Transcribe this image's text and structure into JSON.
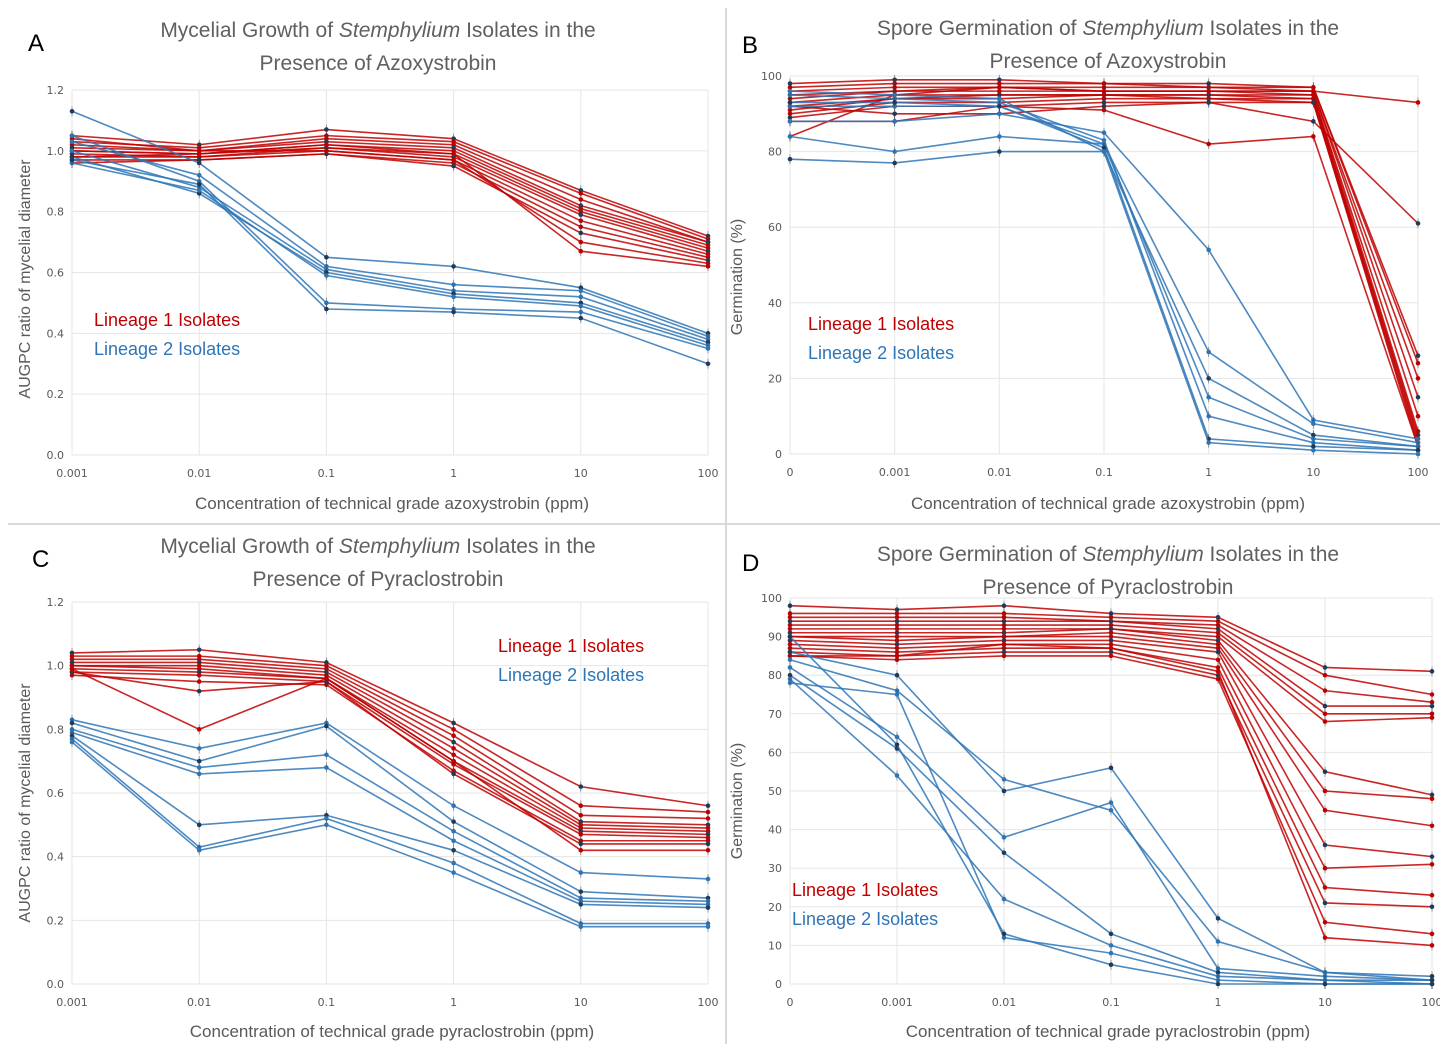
{
  "colors": {
    "lineage1": "#c00000",
    "lineage2": "#2e75b6",
    "mixed": "#1f3b5a",
    "grid": "#e6e6e6",
    "text": "#595959"
  },
  "panels": [
    {
      "letter": "A",
      "title_pre": "Mycelial Growth of ",
      "title_italic": "Stemphylium",
      "title_post": " Isolates in the",
      "title_line2": "Presence of Azoxystrobin",
      "xlabel": "Concentration of technical grade azoxystrobin (ppm)",
      "ylabel": "AUGPC ratio of mycelial diameter",
      "legend": [
        "Lineage 1 Isolates",
        "Lineage 2 Isolates"
      ]
    },
    {
      "letter": "B",
      "title_pre": "Spore Germination of ",
      "title_italic": "Stemphylium",
      "title_post": " Isolates in the",
      "title_line2": "Presence of Azoxystrobin",
      "xlabel": "Concentration of technical grade azoxystrobin (ppm)",
      "ylabel": "Germination (%)",
      "legend": [
        "Lineage 1 Isolates",
        "Lineage 2 Isolates"
      ]
    },
    {
      "letter": "C",
      "title_pre": "Mycelial Growth of ",
      "title_italic": "Stemphylium",
      "title_post": " Isolates in the",
      "title_line2": "Presence of Pyraclostrobin",
      "xlabel": "Concentration of technical grade pyraclostrobin (ppm)",
      "ylabel": "AUGPC ratio of mycelial diameter",
      "legend": [
        "Lineage 1 Isolates",
        "Lineage 2 Isolates"
      ]
    },
    {
      "letter": "D",
      "title_pre": "Spore Germination of ",
      "title_italic": "Stemphylium",
      "title_post": " Isolates in the",
      "title_line2": "Presence of Pyraclostrobin",
      "xlabel": "Concentration of technical grade pyraclostrobin (ppm)",
      "ylabel": "Germination (%)",
      "legend": [
        "Lineage 1 Isolates",
        "Lineage 2 Isolates"
      ]
    }
  ],
  "chart_data": [
    {
      "type": "line",
      "title": "Mycelial Growth of Stemphylium Isolates in the Presence of Azoxystrobin",
      "xlabel": "Concentration of technical grade azoxystrobin (ppm)",
      "ylabel": "AUGPC ratio of mycelial diameter",
      "categories": [
        "0.001",
        "0.01",
        "0.1",
        "1",
        "10",
        "100"
      ],
      "yticks": [
        "0.0",
        "0.2",
        "0.4",
        "0.6",
        "0.8",
        "1.0",
        "1.2"
      ],
      "ylim": [
        0,
        1.2
      ],
      "grid": true,
      "legend": "center-left",
      "series": [
        {
          "lineage": 1,
          "values": [
            1.05,
            1.02,
            1.07,
            1.04,
            0.87,
            0.72
          ]
        },
        {
          "lineage": 1,
          "values": [
            1.03,
            1.01,
            1.05,
            1.03,
            0.86,
            0.71
          ]
        },
        {
          "lineage": 1,
          "values": [
            1.02,
            1.0,
            1.04,
            1.02,
            0.84,
            0.7
          ]
        },
        {
          "lineage": 1,
          "values": [
            1.01,
            1.0,
            1.03,
            1.01,
            0.82,
            0.7
          ]
        },
        {
          "lineage": 1,
          "values": [
            1.0,
            0.99,
            1.02,
            1.0,
            0.81,
            0.69
          ]
        },
        {
          "lineage": 1,
          "values": [
            1.0,
            0.99,
            1.01,
            0.99,
            0.8,
            0.68
          ]
        },
        {
          "lineage": 1,
          "values": [
            0.99,
            0.98,
            1.01,
            0.98,
            0.79,
            0.67
          ]
        },
        {
          "lineage": 1,
          "values": [
            0.98,
            0.98,
            1.0,
            0.97,
            0.77,
            0.66
          ]
        },
        {
          "lineage": 1,
          "values": [
            0.97,
            0.97,
            0.99,
            0.96,
            0.75,
            0.65
          ]
        },
        {
          "lineage": 1,
          "values": [
            0.96,
            0.97,
            0.99,
            0.95,
            0.73,
            0.64
          ]
        },
        {
          "lineage": 1,
          "values": [
            1.04,
            1.0,
            1.0,
            0.97,
            0.7,
            0.63
          ]
        },
        {
          "lineage": 1,
          "values": [
            0.98,
            0.99,
            1.02,
            0.99,
            0.67,
            0.62
          ]
        },
        {
          "lineage": 2,
          "values": [
            1.13,
            0.96,
            0.65,
            0.62,
            0.55,
            0.4
          ]
        },
        {
          "lineage": 2,
          "values": [
            1.03,
            0.92,
            0.62,
            0.56,
            0.54,
            0.39
          ]
        },
        {
          "lineage": 2,
          "values": [
            1.0,
            0.88,
            0.61,
            0.54,
            0.52,
            0.38
          ]
        },
        {
          "lineage": 2,
          "values": [
            0.98,
            0.86,
            0.6,
            0.53,
            0.5,
            0.37
          ]
        },
        {
          "lineage": 2,
          "values": [
            0.96,
            0.87,
            0.59,
            0.52,
            0.49,
            0.36
          ]
        },
        {
          "lineage": 2,
          "values": [
            1.05,
            0.9,
            0.5,
            0.48,
            0.47,
            0.35
          ]
        },
        {
          "lineage": 2,
          "values": [
            0.97,
            0.89,
            0.48,
            0.47,
            0.45,
            0.3
          ]
        }
      ]
    },
    {
      "type": "line",
      "title": "Spore Germination of Stemphylium Isolates in the Presence of Azoxystrobin",
      "xlabel": "Concentration of technical grade azoxystrobin (ppm)",
      "ylabel": "Germination (%)",
      "categories": [
        "0",
        "0.001",
        "0.01",
        "0.1",
        "1",
        "10",
        "100"
      ],
      "yticks": [
        "0",
        "20",
        "40",
        "60",
        "80",
        "100"
      ],
      "ylim": [
        0,
        100
      ],
      "grid": true,
      "legend": "center-left",
      "series": [
        {
          "lineage": 1,
          "values": [
            98,
            99,
            99,
            98,
            98,
            97,
            26
          ]
        },
        {
          "lineage": 1,
          "values": [
            97,
            98,
            98,
            98,
            97,
            97,
            24
          ]
        },
        {
          "lineage": 1,
          "values": [
            96,
            97,
            97,
            97,
            97,
            96,
            20
          ]
        },
        {
          "lineage": 1,
          "values": [
            95,
            96,
            97,
            96,
            96,
            96,
            15
          ]
        },
        {
          "lineage": 1,
          "values": [
            94,
            96,
            96,
            96,
            96,
            95,
            10
          ]
        },
        {
          "lineage": 1,
          "values": [
            93,
            95,
            95,
            95,
            95,
            95,
            6
          ]
        },
        {
          "lineage": 1,
          "values": [
            92,
            94,
            95,
            95,
            95,
            94,
            5
          ]
        },
        {
          "lineage": 1,
          "values": [
            91,
            94,
            94,
            95,
            94,
            94,
            4
          ]
        },
        {
          "lineage": 1,
          "values": [
            90,
            93,
            93,
            94,
            94,
            93,
            3
          ]
        },
        {
          "lineage": 1,
          "values": [
            89,
            92,
            92,
            93,
            93,
            93,
            2
          ]
        },
        {
          "lineage": 1,
          "values": [
            88,
            88,
            92,
            91,
            82,
            84,
            2
          ]
        },
        {
          "lineage": 1,
          "values": [
            84,
            95,
            97,
            96,
            96,
            96,
            93
          ]
        },
        {
          "lineage": 1,
          "values": [
            92,
            90,
            90,
            92,
            93,
            88,
            61
          ]
        },
        {
          "lineage": 2,
          "values": [
            88,
            88,
            90,
            85,
            54,
            9,
            4
          ]
        },
        {
          "lineage": 2,
          "values": [
            84,
            80,
            84,
            82,
            27,
            8,
            3
          ]
        },
        {
          "lineage": 2,
          "values": [
            78,
            77,
            80,
            80,
            20,
            5,
            2
          ]
        },
        {
          "lineage": 2,
          "values": [
            92,
            92,
            92,
            82,
            15,
            4,
            2
          ]
        },
        {
          "lineage": 2,
          "values": [
            95,
            94,
            93,
            83,
            10,
            3,
            1
          ]
        },
        {
          "lineage": 2,
          "values": [
            93,
            93,
            92,
            81,
            4,
            2,
            1
          ]
        },
        {
          "lineage": 2,
          "values": [
            96,
            95,
            94,
            80,
            3,
            1,
            0
          ]
        }
      ]
    },
    {
      "type": "line",
      "title": "Mycelial Growth of Stemphylium Isolates in the Presence of Pyraclostrobin",
      "xlabel": "Concentration of technical grade pyraclostrobin (ppm)",
      "ylabel": "AUGPC ratio of mycelial diameter",
      "categories": [
        "0.001",
        "0.01",
        "0.1",
        "1",
        "10",
        "100"
      ],
      "yticks": [
        "0.0",
        "0.2",
        "0.4",
        "0.6",
        "0.8",
        "1.0",
        "1.2"
      ],
      "ylim": [
        0,
        1.2
      ],
      "grid": true,
      "legend": "top-right",
      "series": [
        {
          "lineage": 1,
          "values": [
            1.04,
            1.05,
            1.01,
            0.82,
            0.62,
            0.56
          ]
        },
        {
          "lineage": 1,
          "values": [
            1.03,
            1.03,
            1.0,
            0.8,
            0.56,
            0.54
          ]
        },
        {
          "lineage": 1,
          "values": [
            1.02,
            1.02,
            0.99,
            0.78,
            0.53,
            0.52
          ]
        },
        {
          "lineage": 1,
          "values": [
            1.01,
            1.01,
            0.98,
            0.76,
            0.51,
            0.5
          ]
        },
        {
          "lineage": 1,
          "values": [
            1.0,
            1.0,
            0.97,
            0.74,
            0.5,
            0.49
          ]
        },
        {
          "lineage": 1,
          "values": [
            1.0,
            0.99,
            0.96,
            0.72,
            0.49,
            0.48
          ]
        },
        {
          "lineage": 1,
          "values": [
            0.99,
            0.98,
            0.96,
            0.7,
            0.48,
            0.47
          ]
        },
        {
          "lineage": 1,
          "values": [
            0.98,
            0.97,
            0.95,
            0.69,
            0.47,
            0.46
          ]
        },
        {
          "lineage": 1,
          "values": [
            0.97,
            0.95,
            0.94,
            0.67,
            0.45,
            0.45
          ]
        },
        {
          "lineage": 1,
          "values": [
            0.98,
            0.92,
            0.95,
            0.66,
            0.44,
            0.44
          ]
        },
        {
          "lineage": 1,
          "values": [
            0.99,
            0.8,
            0.96,
            0.7,
            0.42,
            0.42
          ]
        },
        {
          "lineage": 2,
          "values": [
            0.83,
            0.74,
            0.82,
            0.56,
            0.35,
            0.33
          ]
        },
        {
          "lineage": 2,
          "values": [
            0.82,
            0.7,
            0.81,
            0.51,
            0.29,
            0.27
          ]
        },
        {
          "lineage": 2,
          "values": [
            0.8,
            0.68,
            0.72,
            0.48,
            0.27,
            0.26
          ]
        },
        {
          "lineage": 2,
          "values": [
            0.79,
            0.66,
            0.68,
            0.45,
            0.26,
            0.25
          ]
        },
        {
          "lineage": 2,
          "values": [
            0.78,
            0.5,
            0.53,
            0.42,
            0.25,
            0.24
          ]
        },
        {
          "lineage": 2,
          "values": [
            0.77,
            0.43,
            0.52,
            0.38,
            0.19,
            0.19
          ]
        },
        {
          "lineage": 2,
          "values": [
            0.76,
            0.42,
            0.5,
            0.35,
            0.18,
            0.18
          ]
        }
      ]
    },
    {
      "type": "line",
      "title": "Spore Germination of Stemphylium Isolates in the Presence of Pyraclostrobin",
      "xlabel": "Concentration of technical grade pyraclostrobin (ppm)",
      "ylabel": "Germination (%)",
      "categories": [
        "0",
        "0.001",
        "0.01",
        "0.1",
        "1",
        "10",
        "100"
      ],
      "yticks": [
        "0",
        "10",
        "20",
        "30",
        "40",
        "50",
        "60",
        "70",
        "80",
        "90",
        "100"
      ],
      "ylim": [
        0,
        100
      ],
      "grid": true,
      "legend": "bottom-left",
      "series": [
        {
          "lineage": 1,
          "values": [
            98,
            97,
            98,
            96,
            95,
            82,
            81
          ]
        },
        {
          "lineage": 1,
          "values": [
            96,
            96,
            96,
            95,
            94,
            80,
            75
          ]
        },
        {
          "lineage": 1,
          "values": [
            95,
            95,
            95,
            94,
            93,
            76,
            73
          ]
        },
        {
          "lineage": 1,
          "values": [
            94,
            94,
            94,
            94,
            92,
            72,
            72
          ]
        },
        {
          "lineage": 1,
          "values": [
            93,
            93,
            93,
            93,
            91,
            70,
            70
          ]
        },
        {
          "lineage": 1,
          "values": [
            92,
            92,
            92,
            92,
            90,
            68,
            69
          ]
        },
        {
          "lineage": 1,
          "values": [
            91,
            91,
            91,
            92,
            89,
            55,
            49
          ]
        },
        {
          "lineage": 1,
          "values": [
            90,
            90,
            90,
            91,
            88,
            50,
            48
          ]
        },
        {
          "lineage": 1,
          "values": [
            90,
            89,
            90,
            90,
            87,
            45,
            41
          ]
        },
        {
          "lineage": 1,
          "values": [
            89,
            88,
            89,
            89,
            86,
            36,
            33
          ]
        },
        {
          "lineage": 1,
          "values": [
            88,
            87,
            88,
            88,
            84,
            30,
            31
          ]
        },
        {
          "lineage": 1,
          "values": [
            87,
            86,
            87,
            87,
            82,
            25,
            23
          ]
        },
        {
          "lineage": 1,
          "values": [
            86,
            85,
            86,
            86,
            80,
            21,
            20
          ]
        },
        {
          "lineage": 1,
          "values": [
            85,
            84,
            85,
            85,
            79,
            16,
            13
          ]
        },
        {
          "lineage": 1,
          "values": [
            85,
            85,
            88,
            87,
            81,
            12,
            10
          ]
        },
        {
          "lineage": 2,
          "values": [
            86,
            80,
            50,
            56,
            17,
            3,
            2
          ]
        },
        {
          "lineage": 2,
          "values": [
            84,
            76,
            53,
            45,
            11,
            3,
            1
          ]
        },
        {
          "lineage": 2,
          "values": [
            82,
            64,
            38,
            47,
            4,
            2,
            1
          ]
        },
        {
          "lineage": 2,
          "values": [
            80,
            61,
            34,
            13,
            3,
            1,
            1
          ]
        },
        {
          "lineage": 2,
          "values": [
            79,
            54,
            22,
            10,
            2,
            1,
            0
          ]
        },
        {
          "lineage": 2,
          "values": [
            78,
            75,
            12,
            8,
            1,
            0,
            0
          ]
        },
        {
          "lineage": 2,
          "values": [
            90,
            62,
            13,
            5,
            0,
            0,
            0
          ]
        }
      ]
    }
  ]
}
